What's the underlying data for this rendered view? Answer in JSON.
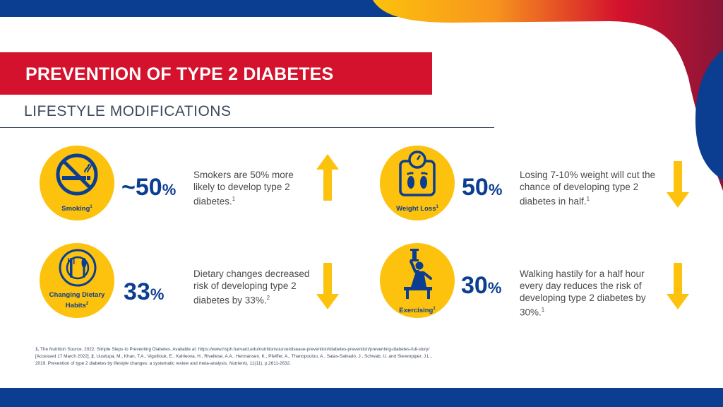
{
  "header": {
    "title": "PREVENTION OF TYPE 2 DIABETES",
    "subtitle": "LIFESTYLE MODIFICATIONS"
  },
  "colors": {
    "brand_blue": "#0b3d91",
    "accent_red": "#d4122d",
    "accent_yellow": "#fcc20d",
    "swoosh_orange": "#f7941d"
  },
  "cards": [
    {
      "icon": "no-smoking-icon",
      "label": "Smoking",
      "label_ref": "1",
      "stat_value": "~50",
      "stat_unit": "%",
      "text": "Smokers are 50% more likely to develop type 2 diabetes.",
      "text_ref": "1",
      "trend": "up-arrow-icon"
    },
    {
      "icon": "weight-scale-icon",
      "label": "Weight Loss",
      "label_ref": "1",
      "stat_value": "50",
      "stat_unit": "%",
      "text": "Losing 7-10% weight will cut the chance of developing type 2 diabetes in half.",
      "text_ref": "1",
      "trend": "down-arrow-icon"
    },
    {
      "icon": "plate-cutlery-icon",
      "label": "Changing Dietary Habits",
      "label_ref": "2",
      "stat_value": "33",
      "stat_unit": "%",
      "text": "Dietary changes decreased risk of developing type 2 diabetes by 33%.",
      "text_ref": "2",
      "trend": "down-arrow-icon"
    },
    {
      "icon": "exercise-dumbbell-icon",
      "label": "Exercising",
      "label_ref": "1",
      "stat_value": "30",
      "stat_unit": "%",
      "text": "Walking hastily for a half hour every day reduces the risk of developing type 2 diabetes by 30%.",
      "text_ref": "1",
      "trend": "down-arrow-icon"
    }
  ],
  "references": {
    "ref1_num": "1.",
    "ref1_text": "The Nutrition Source. 2022. Simple Steps to Preventing Diabetes. Available at: https://www.hsph.harvard.edu/nutritionsource/disease-prevention/diabetes-prevention/preventing-diabetes-full-story/ [Accessed 17 March 2022].",
    "ref2_num": "2.",
    "ref2_text": "Uusitupa, M., Khan, T.A., Viguiliouk, E., Kahleova, H., Rivellese, A.A., Hermansen, K., Pfeiffer, A., Thanopoulou, A., Salas-Salvadó, J., Schwab, U. and Sievenpiper, J.L., 2019. Prevention of type 2 diabetes by lifestyle changes: a systematic review and meta-analysis.",
    "ref2_journal": "Nutrients,",
    "ref2_tail": "11(11), p.2611-2632."
  }
}
